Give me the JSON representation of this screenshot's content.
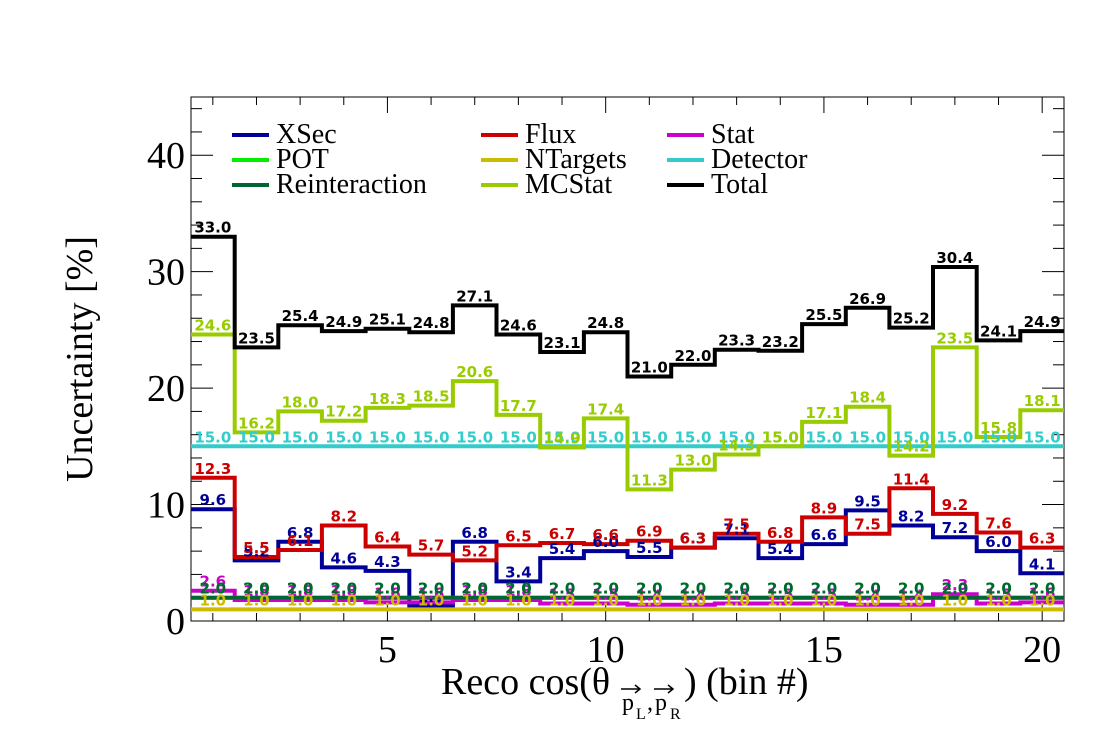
{
  "chart_data": {
    "type": "step",
    "xlabel_main": "Reco cos(θ",
    "xlabel_sub_left": "p",
    "xlabel_sub_left_idx": "L",
    "xlabel_sub_sep": ",",
    "xlabel_sub_right": "p",
    "xlabel_sub_right_idx": "R",
    "xlabel_tail": ") (bin #)",
    "ylabel": "Uncertainty [%]",
    "xlim": [
      0.5,
      20.5
    ],
    "ylim": [
      0,
      45
    ],
    "x_ticks": [
      "5",
      "10",
      "15",
      "20"
    ],
    "y_ticks": [
      "0",
      "10",
      "20",
      "30",
      "40"
    ],
    "bins": [
      1,
      2,
      3,
      4,
      5,
      6,
      7,
      8,
      9,
      10,
      11,
      12,
      13,
      14,
      15,
      16,
      17,
      18,
      19,
      20
    ],
    "series": [
      {
        "name": "XSec",
        "color": "#000099",
        "labels": [
          "9.6",
          "5.2",
          "6.8",
          "4.6",
          "4.3",
          "1.3",
          "6.8",
          "3.4",
          "5.4",
          "6.0",
          "5.5",
          "6.3",
          "7.1",
          "5.4",
          "6.6",
          "9.5",
          "8.2",
          "7.2",
          "6.0",
          "4.1"
        ],
        "values": [
          9.6,
          5.2,
          6.8,
          4.6,
          4.3,
          1.3,
          6.8,
          3.4,
          5.4,
          6.0,
          5.5,
          6.3,
          7.1,
          5.4,
          6.6,
          9.5,
          8.2,
          7.2,
          6.0,
          4.1
        ]
      },
      {
        "name": "Flux",
        "color": "#cc0000",
        "labels": [
          "12.3",
          "5.5",
          "6.1",
          "8.2",
          "6.4",
          "5.7",
          "5.2",
          "6.5",
          "6.7",
          "6.6",
          "6.9",
          "6.3",
          "7.5",
          "6.8",
          "8.9",
          "7.5",
          "11.4",
          "9.2",
          "7.6",
          "6.3"
        ],
        "values": [
          12.3,
          5.5,
          6.1,
          8.2,
          6.4,
          5.7,
          5.2,
          6.5,
          6.7,
          6.6,
          6.9,
          6.3,
          7.5,
          6.8,
          8.9,
          7.5,
          11.4,
          9.2,
          7.6,
          6.3
        ]
      },
      {
        "name": "Stat",
        "color": "#cc00cc",
        "labels": [
          "2.6",
          "1.8",
          "1.8",
          "1.8",
          "1.6",
          "1.6",
          "1.8",
          "1.8",
          "1.5",
          "1.5",
          "1.4",
          "1.4",
          "1.5",
          "1.5",
          "1.5",
          "1.4",
          "1.4",
          "2.3",
          "1.5",
          "1.6"
        ],
        "values": [
          2.6,
          1.8,
          1.8,
          1.8,
          1.6,
          1.6,
          1.8,
          1.8,
          1.5,
          1.5,
          1.4,
          1.4,
          1.5,
          1.5,
          1.5,
          1.4,
          1.4,
          2.3,
          1.5,
          1.6
        ]
      },
      {
        "name": "POT",
        "color": "#00ee00",
        "labels": [
          "2.0",
          "2.0",
          "2.0",
          "2.0",
          "2.0",
          "2.0",
          "2.0",
          "2.0",
          "2.0",
          "2.0",
          "2.0",
          "2.0",
          "2.0",
          "2.0",
          "2.0",
          "2.0",
          "2.0",
          "2.0",
          "2.0",
          "2.0"
        ],
        "values": [
          2,
          2,
          2,
          2,
          2,
          2,
          2,
          2,
          2,
          2,
          2,
          2,
          2,
          2,
          2,
          2,
          2,
          2,
          2,
          2
        ]
      },
      {
        "name": "NTargets",
        "color": "#ccbb00",
        "labels": [
          "1.0",
          "1.0",
          "1.0",
          "1.0",
          "1.0",
          "1.0",
          "1.0",
          "1.0",
          "1.0",
          "1.0",
          "1.0",
          "1.0",
          "1.0",
          "1.0",
          "1.0",
          "1.0",
          "1.0",
          "1.0",
          "1.0",
          "1.0"
        ],
        "values": [
          1,
          1,
          1,
          1,
          1,
          1,
          1,
          1,
          1,
          1,
          1,
          1,
          1,
          1,
          1,
          1,
          1,
          1,
          1,
          1
        ]
      },
      {
        "name": "Detector",
        "color": "#33cccc",
        "labels": [
          "15.0",
          "15.0",
          "15.0",
          "15.0",
          "15.0",
          "15.0",
          "15.0",
          "15.0",
          "15.0",
          "15.0",
          "15.0",
          "15.0",
          "15.0",
          "15.0",
          "15.0",
          "15.0",
          "15.0",
          "15.0",
          "15.0",
          "15.0"
        ],
        "values": [
          15,
          15,
          15,
          15,
          15,
          15,
          15,
          15,
          15,
          15,
          15,
          15,
          15,
          15,
          15,
          15,
          15,
          15,
          15,
          15
        ]
      },
      {
        "name": "Reinteraction",
        "color": "#006633",
        "labels": [
          "2.0",
          "2.0",
          "2.0",
          "2.0",
          "2.0",
          "2.0",
          "2.0",
          "2.0",
          "2.0",
          "2.0",
          "2.0",
          "2.0",
          "2.0",
          "2.0",
          "2.0",
          "2.0",
          "2.0",
          "2.0",
          "2.0",
          "2.0"
        ],
        "values": [
          2,
          2,
          2,
          2,
          2,
          2,
          2,
          2,
          2,
          2,
          2,
          2,
          2,
          2,
          2,
          2,
          2,
          2,
          2,
          2
        ]
      },
      {
        "name": "MCStat",
        "color": "#99cc00",
        "labels": [
          "24.6",
          "16.2",
          "18.0",
          "17.2",
          "18.3",
          "18.5",
          "20.6",
          "17.7",
          "14.9",
          "17.4",
          "11.3",
          "13.0",
          "14.3",
          "15.0",
          "17.1",
          "18.4",
          "14.2",
          "23.5",
          "15.8",
          "18.1"
        ],
        "values": [
          24.6,
          16.2,
          18.0,
          17.2,
          18.3,
          18.5,
          20.6,
          17.7,
          14.9,
          17.4,
          11.3,
          13.0,
          14.3,
          15.0,
          17.1,
          18.4,
          14.2,
          23.5,
          15.8,
          18.1
        ]
      },
      {
        "name": "Total",
        "color": "#000000",
        "labels": [
          "33.0",
          "23.5",
          "25.4",
          "24.9",
          "25.1",
          "24.8",
          "27.1",
          "24.6",
          "23.1",
          "24.8",
          "21.0",
          "22.0",
          "23.3",
          "23.2",
          "25.5",
          "26.9",
          "25.2",
          "30.4",
          "24.1",
          "24.9"
        ],
        "values": [
          33.0,
          23.5,
          25.4,
          24.9,
          25.1,
          24.8,
          27.1,
          24.6,
          23.1,
          24.8,
          21.0,
          22.0,
          23.3,
          23.2,
          25.5,
          26.9,
          25.2,
          30.4,
          24.1,
          24.9
        ]
      }
    ]
  }
}
